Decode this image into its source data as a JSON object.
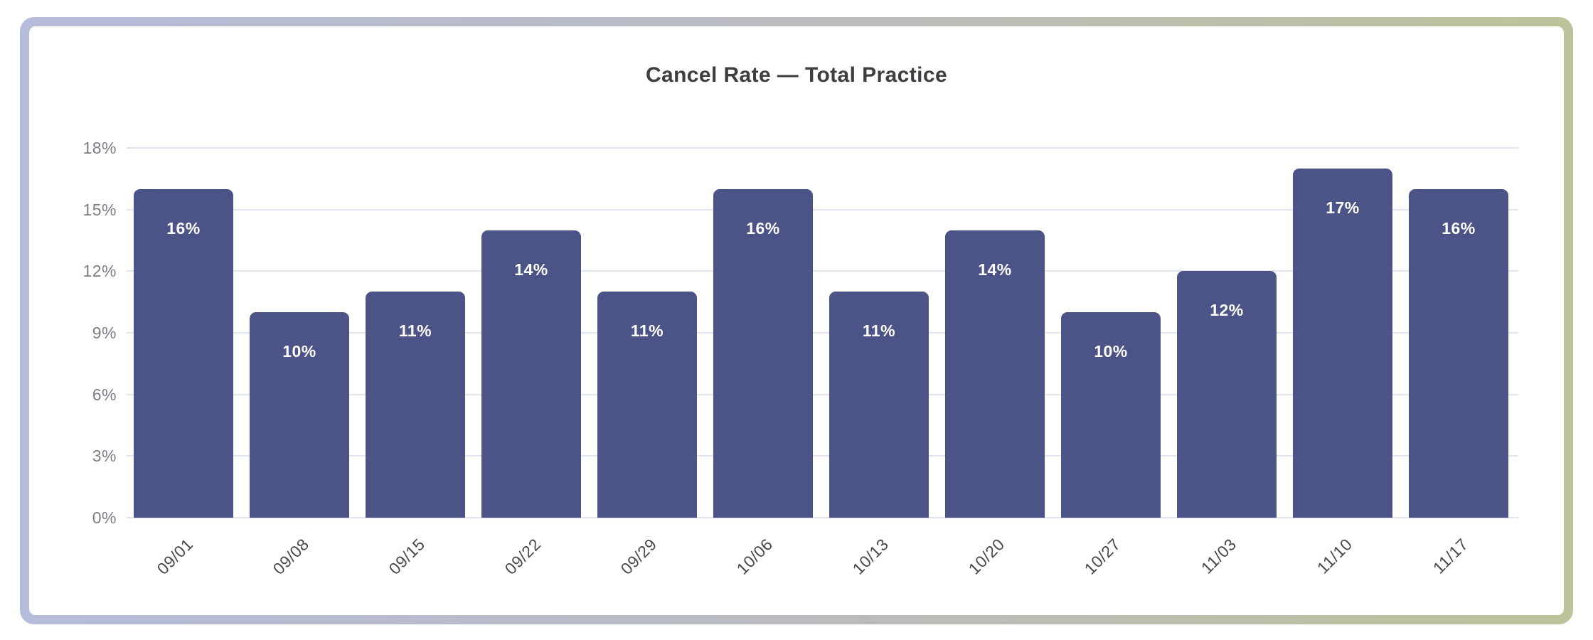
{
  "frame": {
    "gradient_left": "#b6bcdb",
    "gradient_mid": "#b9bbbd",
    "gradient_right": "#bec29a",
    "card_background": "#ffffff"
  },
  "chart_data": {
    "type": "bar",
    "title": "Cancel Rate — Total Practice",
    "categories": [
      "09/01",
      "09/08",
      "09/15",
      "09/22",
      "09/29",
      "10/06",
      "10/13",
      "10/20",
      "10/27",
      "11/03",
      "11/10",
      "11/17"
    ],
    "values": [
      16,
      10,
      11,
      14,
      11,
      16,
      11,
      14,
      10,
      12,
      17,
      16
    ],
    "value_labels": [
      "16%",
      "10%",
      "11%",
      "14%",
      "11%",
      "16%",
      "11%",
      "14%",
      "10%",
      "12%",
      "17%",
      "16%"
    ],
    "unit": "%",
    "xlabel": "",
    "ylabel": "",
    "ylim": [
      0,
      18
    ],
    "ytick_values": [
      0,
      3,
      6,
      9,
      12,
      15,
      18
    ],
    "ytick_labels": [
      "0%",
      "3%",
      "6%",
      "9%",
      "12%",
      "15%",
      "18%"
    ],
    "grid": true,
    "legend": "none",
    "bar_color": "#4b5387",
    "bar_label_color": "#ffffff",
    "gridline_color": "#e3e6f1",
    "ytick_color": "#7c7c87",
    "xtick_color": "#48484e",
    "title_color": "#3d3d42"
  }
}
